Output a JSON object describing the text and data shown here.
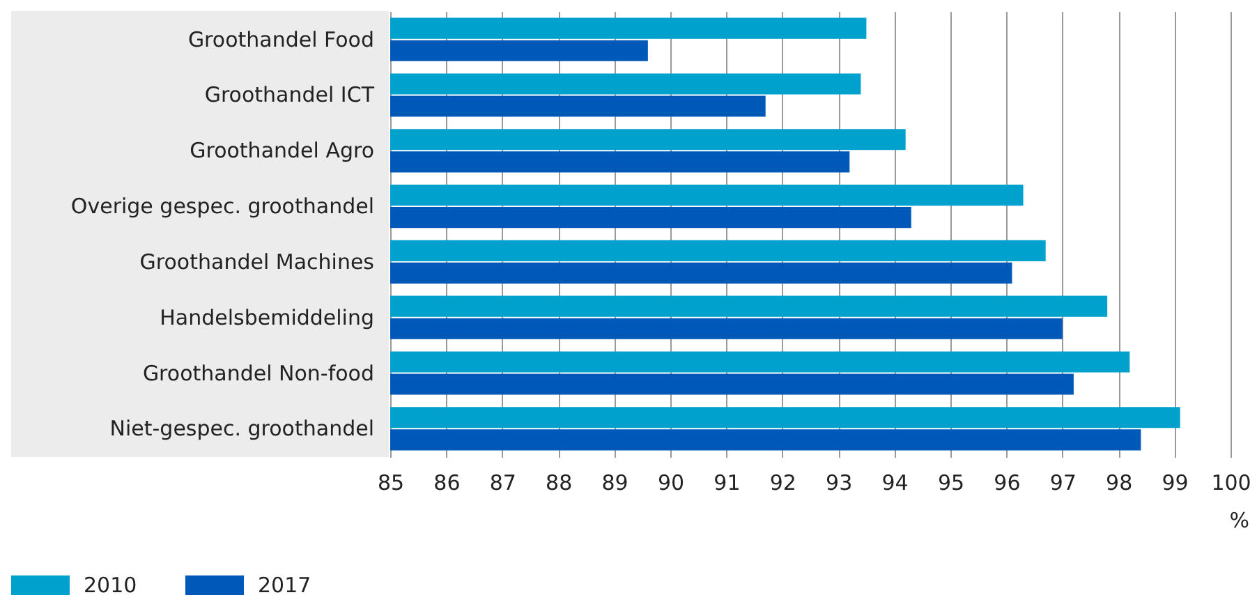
{
  "chart_data": {
    "type": "bar",
    "orientation": "horizontal",
    "categories": [
      "Groothandel Food",
      "Groothandel ICT",
      "Groothandel Agro",
      "Overige gespec. groothandel",
      "Groothandel Machines",
      "Handelsbemiddeling",
      "Groothandel Non-food",
      "Niet-gespec. groothandel"
    ],
    "series": [
      {
        "name": "2010",
        "color": "#00a1cd",
        "values": [
          93.5,
          93.4,
          94.2,
          96.3,
          96.7,
          97.8,
          98.2,
          99.1
        ]
      },
      {
        "name": "2017",
        "color": "#0058b8",
        "values": [
          89.6,
          91.7,
          93.2,
          94.3,
          96.1,
          97.0,
          97.2,
          98.4
        ]
      }
    ],
    "xlabel": "%",
    "xlim": [
      85,
      100
    ],
    "xticks": [
      85,
      86,
      87,
      88,
      89,
      90,
      91,
      92,
      93,
      94,
      95,
      96,
      97,
      98,
      99,
      100
    ],
    "grid": "x",
    "legend": "bottom left"
  }
}
